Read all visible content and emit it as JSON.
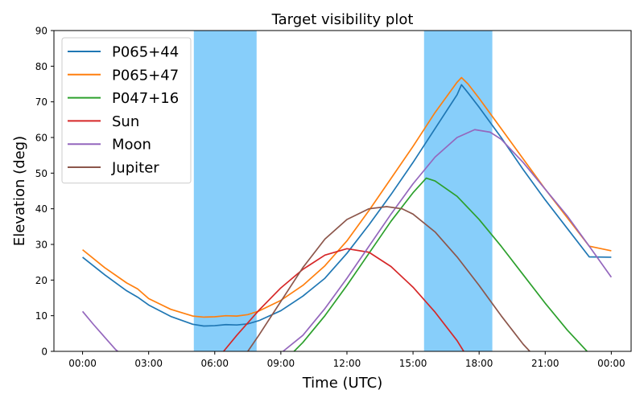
{
  "chart_data": {
    "type": "line",
    "title": "Target visibility plot",
    "xlabel": "Time (UTC)",
    "ylabel": "Elevation (deg)",
    "xlim": [
      -1.3,
      24.9
    ],
    "ylim": [
      0,
      90
    ],
    "x_ticks": [
      {
        "value": 0,
        "label": "00:00"
      },
      {
        "value": 3,
        "label": "03:00"
      },
      {
        "value": 6,
        "label": "06:00"
      },
      {
        "value": 9,
        "label": "09:00"
      },
      {
        "value": 12,
        "label": "12:00"
      },
      {
        "value": 15,
        "label": "15:00"
      },
      {
        "value": 18,
        "label": "18:00"
      },
      {
        "value": 21,
        "label": "21:00"
      },
      {
        "value": 24,
        "label": "00:00"
      }
    ],
    "y_ticks": [
      0,
      10,
      20,
      30,
      40,
      50,
      60,
      70,
      80,
      90
    ],
    "grid": false,
    "legend_position": "top-left",
    "shaded_windows": [
      {
        "start": 5.05,
        "end": 7.9,
        "color": "#87CEFA"
      },
      {
        "start": 15.5,
        "end": 18.6,
        "color": "#87CEFA"
      }
    ],
    "series": [
      {
        "name": "P065+44",
        "color": "#1f77b4",
        "points": [
          [
            0,
            26.4
          ],
          [
            1,
            21.5
          ],
          [
            2,
            17.0
          ],
          [
            2.5,
            15.2
          ],
          [
            3,
            13.0
          ],
          [
            4,
            9.8
          ],
          [
            5,
            7.6
          ],
          [
            5.5,
            7.1
          ],
          [
            6,
            7.2
          ],
          [
            6.5,
            7.5
          ],
          [
            7,
            7.4
          ],
          [
            7.5,
            7.7
          ],
          [
            8,
            8.6
          ],
          [
            9,
            11.4
          ],
          [
            10,
            15.5
          ],
          [
            11,
            20.5
          ],
          [
            12,
            27.5
          ],
          [
            13,
            35.5
          ],
          [
            14,
            44.0
          ],
          [
            15,
            53.0
          ],
          [
            16,
            62.5
          ],
          [
            17,
            72.0
          ],
          [
            17.2,
            74.8
          ],
          [
            17.5,
            72.5
          ],
          [
            18,
            68.5
          ],
          [
            19,
            60.0
          ],
          [
            20,
            51.0
          ],
          [
            21,
            42.5
          ],
          [
            22,
            34.5
          ],
          [
            23,
            26.5
          ],
          [
            24,
            26.4
          ]
        ]
      },
      {
        "name": "P065+47",
        "color": "#ff7f0e",
        "points": [
          [
            0,
            28.5
          ],
          [
            1,
            23.5
          ],
          [
            2,
            19.2
          ],
          [
            2.5,
            17.5
          ],
          [
            3,
            14.8
          ],
          [
            4,
            11.8
          ],
          [
            5,
            9.9
          ],
          [
            5.5,
            9.6
          ],
          [
            6,
            9.7
          ],
          [
            6.5,
            10.0
          ],
          [
            7,
            9.9
          ],
          [
            7.5,
            10.3
          ],
          [
            8,
            11.3
          ],
          [
            9,
            14.3
          ],
          [
            10,
            18.5
          ],
          [
            11,
            24.0
          ],
          [
            12,
            31.0
          ],
          [
            13,
            39.5
          ],
          [
            14,
            48.5
          ],
          [
            15,
            57.5
          ],
          [
            16,
            67.0
          ],
          [
            17,
            75.5
          ],
          [
            17.2,
            76.8
          ],
          [
            17.5,
            75.0
          ],
          [
            18,
            71.0
          ],
          [
            19,
            62.5
          ],
          [
            20,
            54.0
          ],
          [
            21,
            45.5
          ],
          [
            22,
            37.5
          ],
          [
            23,
            29.5
          ],
          [
            24,
            28.2
          ]
        ]
      },
      {
        "name": "P047+16",
        "color": "#2ca02c",
        "points": [
          [
            9.6,
            0
          ],
          [
            10,
            2.5
          ],
          [
            11,
            10.0
          ],
          [
            12,
            18.5
          ],
          [
            13,
            27.5
          ],
          [
            14,
            36.5
          ],
          [
            15,
            44.5
          ],
          [
            15.6,
            48.6
          ],
          [
            16,
            47.8
          ],
          [
            17,
            43.5
          ],
          [
            18,
            37.0
          ],
          [
            19,
            29.5
          ],
          [
            20,
            21.5
          ],
          [
            21,
            13.5
          ],
          [
            22,
            6.0
          ],
          [
            22.9,
            0
          ]
        ]
      },
      {
        "name": "Sun",
        "color": "#d62728",
        "points": [
          [
            6.4,
            0
          ],
          [
            7,
            4.5
          ],
          [
            8,
            11.5
          ],
          [
            9,
            17.8
          ],
          [
            10,
            23.0
          ],
          [
            11,
            27.0
          ],
          [
            12,
            28.8
          ],
          [
            13,
            27.8
          ],
          [
            14,
            23.8
          ],
          [
            15,
            18.0
          ],
          [
            16,
            11.0
          ],
          [
            17,
            3.0
          ],
          [
            17.3,
            0
          ]
        ]
      },
      {
        "name": "Moon",
        "color": "#9467bd",
        "points": [
          [
            0,
            11.2
          ],
          [
            0.5,
            7.5
          ],
          [
            1,
            4.0
          ],
          [
            1.5,
            0.5
          ],
          [
            1.6,
            0
          ]
        ],
        "points2": [
          [
            9.1,
            0
          ],
          [
            10,
            4.5
          ],
          [
            11,
            12.0
          ],
          [
            12,
            20.5
          ],
          [
            13,
            29.5
          ],
          [
            14,
            38.5
          ],
          [
            15,
            47.0
          ],
          [
            16,
            54.5
          ],
          [
            17,
            60.0
          ],
          [
            17.8,
            62.2
          ],
          [
            18.5,
            61.5
          ],
          [
            19,
            59.5
          ],
          [
            20,
            53.0
          ],
          [
            21,
            45.5
          ],
          [
            22,
            38.0
          ],
          [
            23,
            29.5
          ],
          [
            24,
            20.8
          ]
        ]
      },
      {
        "name": "Jupiter",
        "color": "#8c564b",
        "points": [
          [
            7.5,
            0
          ],
          [
            8,
            4.5
          ],
          [
            9,
            14.0
          ],
          [
            10,
            23.5
          ],
          [
            11,
            31.5
          ],
          [
            12,
            37.0
          ],
          [
            13,
            40.0
          ],
          [
            13.8,
            40.6
          ],
          [
            14.5,
            40.0
          ],
          [
            15,
            38.5
          ],
          [
            16,
            33.5
          ],
          [
            17,
            26.5
          ],
          [
            18,
            18.5
          ],
          [
            19,
            10.0
          ],
          [
            20,
            2.0
          ],
          [
            20.3,
            0
          ]
        ]
      }
    ]
  }
}
